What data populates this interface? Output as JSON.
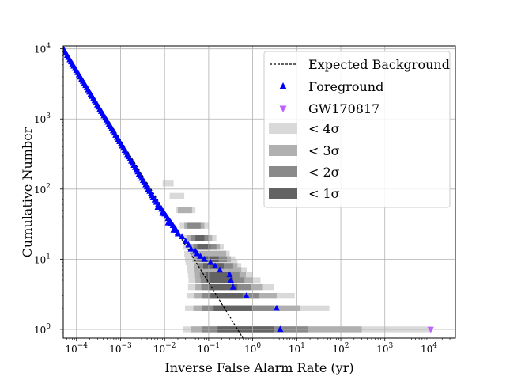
{
  "chart_data": {
    "type": "scatter",
    "xlabel": "Inverse False Alarm Rate (yr)",
    "ylabel": "Cumulative Number",
    "x_scale": "log",
    "y_scale": "log",
    "xlim": [
      5e-05,
      40000
    ],
    "ylim": [
      0.75,
      11000
    ],
    "grid": true,
    "legend_position": "top-right",
    "x_ticks": [
      {
        "base": "10",
        "exp": "−4",
        "value": 0.0001
      },
      {
        "base": "10",
        "exp": "−3",
        "value": 0.001
      },
      {
        "base": "10",
        "exp": "−2",
        "value": 0.01
      },
      {
        "base": "10",
        "exp": "−1",
        "value": 0.1
      },
      {
        "base": "10",
        "exp": "0",
        "value": 1
      },
      {
        "base": "10",
        "exp": "1",
        "value": 10
      },
      {
        "base": "10",
        "exp": "2",
        "value": 100
      },
      {
        "base": "10",
        "exp": "3",
        "value": 1000
      },
      {
        "base": "10",
        "exp": "4",
        "value": 10000
      }
    ],
    "y_ticks": [
      {
        "base": "10",
        "exp": "0",
        "value": 1
      },
      {
        "base": "10",
        "exp": "1",
        "value": 10
      },
      {
        "base": "10",
        "exp": "2",
        "value": 100
      },
      {
        "base": "10",
        "exp": "3",
        "value": 1000
      },
      {
        "base": "10",
        "exp": "4",
        "value": 10000
      }
    ],
    "legend": [
      {
        "key": "expected",
        "label": "Expected Background",
        "marker": "dashed-line",
        "color": "#000000"
      },
      {
        "key": "foreground",
        "label": "Foreground",
        "marker": "triangle-up",
        "color": "#0000ff"
      },
      {
        "key": "gw",
        "label": "GW170817",
        "marker": "triangle-down",
        "color": "#bf5fff"
      },
      {
        "key": "s4",
        "label": "< 4σ",
        "marker": "patch",
        "color": "#d9d9d9"
      },
      {
        "key": "s3",
        "label": "< 3σ",
        "marker": "patch",
        "color": "#b0b0b0"
      },
      {
        "key": "s2",
        "label": "< 2σ",
        "marker": "patch",
        "color": "#8a8a8a"
      },
      {
        "key": "s1",
        "label": "< 1σ",
        "marker": "patch",
        "color": "#636363"
      }
    ],
    "expected_background": {
      "x": [
        5e-05,
        0.6
      ],
      "y": [
        10500,
        0.75
      ]
    },
    "sigma_bands": [
      {
        "name": "< 4σ",
        "color": "#d9d9d9",
        "rows": [
          {
            "y": 1,
            "x0": 0.026,
            "x1": 12000
          },
          {
            "y": 2,
            "x0": 0.029,
            "x1": 55
          },
          {
            "y": 3,
            "x0": 0.032,
            "x1": 9
          },
          {
            "y": 4,
            "x0": 0.034,
            "x1": 3
          },
          {
            "y": 5,
            "x0": 0.035,
            "x1": 1.5
          },
          {
            "y": 6,
            "x0": 0.034,
            "x1": 1.0
          },
          {
            "y": 7,
            "x0": 0.033,
            "x1": 0.75
          },
          {
            "y": 8,
            "x0": 0.032,
            "x1": 0.55
          },
          {
            "y": 9,
            "x0": 0.03,
            "x1": 0.45
          },
          {
            "y": 10,
            "x0": 0.029,
            "x1": 0.4
          },
          {
            "y": 12,
            "x0": 0.028,
            "x1": 0.3
          },
          {
            "y": 15,
            "x0": 0.026,
            "x1": 0.22
          },
          {
            "y": 20,
            "x0": 0.024,
            "x1": 0.15
          },
          {
            "y": 30,
            "x0": 0.022,
            "x1": 0.1
          },
          {
            "y": 50,
            "x0": 0.018,
            "x1": 0.05
          },
          {
            "y": 80,
            "x0": 0.013,
            "x1": 0.028
          },
          {
            "y": 120,
            "x0": 0.009,
            "x1": 0.016
          }
        ]
      },
      {
        "name": "< 3σ",
        "color": "#b0b0b0",
        "rows": [
          {
            "y": 1,
            "x0": 0.04,
            "x1": 300
          },
          {
            "y": 2,
            "x0": 0.045,
            "x1": 12
          },
          {
            "y": 3,
            "x0": 0.048,
            "x1": 3.5
          },
          {
            "y": 4,
            "x0": 0.05,
            "x1": 1.7
          },
          {
            "y": 5,
            "x0": 0.05,
            "x1": 1.0
          },
          {
            "y": 6,
            "x0": 0.049,
            "x1": 0.7
          },
          {
            "y": 7,
            "x0": 0.048,
            "x1": 0.55
          },
          {
            "y": 8,
            "x0": 0.046,
            "x1": 0.45
          },
          {
            "y": 10,
            "x0": 0.043,
            "x1": 0.32
          },
          {
            "y": 12,
            "x0": 0.04,
            "x1": 0.25
          },
          {
            "y": 15,
            "x0": 0.037,
            "x1": 0.18
          },
          {
            "y": 20,
            "x0": 0.033,
            "x1": 0.12
          },
          {
            "y": 30,
            "x0": 0.028,
            "x1": 0.08
          },
          {
            "y": 50,
            "x0": 0.02,
            "x1": 0.042
          }
        ]
      },
      {
        "name": "< 2σ",
        "color": "#8a8a8a",
        "rows": [
          {
            "y": 1,
            "x0": 0.07,
            "x1": 18
          },
          {
            "y": 2,
            "x0": 0.07,
            "x1": 3.0
          },
          {
            "y": 3,
            "x0": 0.07,
            "x1": 1.4
          },
          {
            "y": 4,
            "x0": 0.068,
            "x1": 0.9
          },
          {
            "y": 5,
            "x0": 0.066,
            "x1": 0.65
          },
          {
            "y": 6,
            "x0": 0.063,
            "x1": 0.5
          },
          {
            "y": 8,
            "x0": 0.058,
            "x1": 0.36
          },
          {
            "y": 10,
            "x0": 0.053,
            "x1": 0.26
          },
          {
            "y": 15,
            "x0": 0.045,
            "x1": 0.15
          },
          {
            "y": 20,
            "x0": 0.04,
            "x1": 0.1
          },
          {
            "y": 30,
            "x0": 0.033,
            "x1": 0.066
          }
        ]
      },
      {
        "name": "< 1σ",
        "color": "#636363",
        "rows": [
          {
            "y": 1,
            "x0": 0.16,
            "x1": 3.0
          },
          {
            "y": 2,
            "x0": 0.13,
            "x1": 1.0
          },
          {
            "y": 3,
            "x0": 0.11,
            "x1": 0.6
          },
          {
            "y": 4,
            "x0": 0.1,
            "x1": 0.45
          },
          {
            "y": 5,
            "x0": 0.09,
            "x1": 0.36
          },
          {
            "y": 6,
            "x0": 0.085,
            "x1": 0.3
          },
          {
            "y": 8,
            "x0": 0.075,
            "x1": 0.22
          },
          {
            "y": 10,
            "x0": 0.068,
            "x1": 0.17
          },
          {
            "y": 15,
            "x0": 0.055,
            "x1": 0.11
          },
          {
            "y": 20,
            "x0": 0.05,
            "x1": 0.08
          }
        ]
      }
    ],
    "foreground": {
      "color": "#0000ff",
      "dense_segments": [
        {
          "x0": 5e-05,
          "x1": 0.006,
          "y0": 10000,
          "y1": 70
        },
        {
          "x0": 0.006,
          "x1": 0.02,
          "y0": 70,
          "y1": 24
        }
      ],
      "points": [
        {
          "x": 0.0055,
          "y": 75
        },
        {
          "x": 0.007,
          "y": 55
        },
        {
          "x": 0.009,
          "y": 45
        },
        {
          "x": 0.012,
          "y": 33
        },
        {
          "x": 0.016,
          "y": 26
        },
        {
          "x": 0.02,
          "y": 23
        },
        {
          "x": 0.025,
          "y": 21
        },
        {
          "x": 0.03,
          "y": 18
        },
        {
          "x": 0.035,
          "y": 16
        },
        {
          "x": 0.04,
          "y": 14
        },
        {
          "x": 0.05,
          "y": 13
        },
        {
          "x": 0.055,
          "y": 12
        },
        {
          "x": 0.065,
          "y": 11
        },
        {
          "x": 0.08,
          "y": 10
        },
        {
          "x": 0.11,
          "y": 9
        },
        {
          "x": 0.14,
          "y": 8
        },
        {
          "x": 0.18,
          "y": 7
        },
        {
          "x": 0.3,
          "y": 6
        },
        {
          "x": 0.32,
          "y": 5
        },
        {
          "x": 0.36,
          "y": 4
        },
        {
          "x": 0.72,
          "y": 3
        },
        {
          "x": 3.5,
          "y": 2
        },
        {
          "x": 4.2,
          "y": 1
        }
      ]
    },
    "gw170817": {
      "x": 11000,
      "y": 1,
      "color": "#bf5fff"
    }
  }
}
